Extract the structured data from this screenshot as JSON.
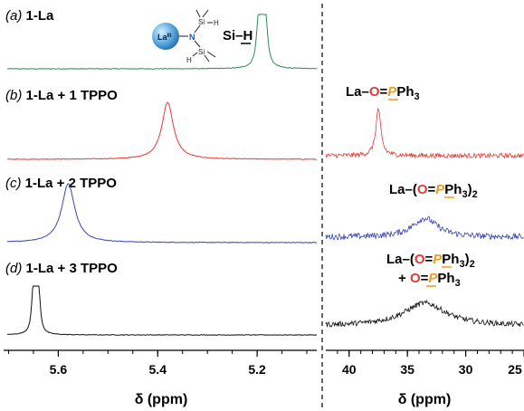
{
  "chart_data": [
    {
      "type": "line",
      "xlabel": "δ (ppm)",
      "xlim": [
        5.71,
        5.08
      ],
      "x_ticks": [
        "5.6",
        "5.4",
        "5.2"
      ],
      "series": [
        {
          "name": "1-La",
          "label_prefix": "(a)",
          "color": "#2e8b57",
          "peaks": [
            {
              "center": 5.19,
              "height": 1.0,
              "width": 0.009,
              "multiplet": true
            }
          ]
        },
        {
          "name": "1-La + 1 TPPO",
          "label_prefix": "(b)",
          "color": "#e53935",
          "peaks": [
            {
              "center": 5.38,
              "height": 1.0,
              "width": 0.014,
              "multiplet": false
            }
          ]
        },
        {
          "name": "1-La + 2 TPPO",
          "label_prefix": "(c)",
          "color": "#3a45b0",
          "peaks": [
            {
              "center": 5.58,
              "height": 1.0,
              "width": 0.016,
              "multiplet": false
            }
          ]
        },
        {
          "name": "1-La + 3 TPPO",
          "label_prefix": "(d)",
          "color": "#111111",
          "peaks": [
            {
              "center": 5.645,
              "height": 1.0,
              "width": 0.007,
              "multiplet": true
            }
          ]
        }
      ],
      "annotations": {
        "si_h": "Si–H",
        "molecule": {
          "la": "La",
          "la_sup": "III",
          "n": "N",
          "si": "Si",
          "h": "H"
        }
      }
    },
    {
      "type": "line",
      "xlabel": "δ (ppm)",
      "xlim": [
        42,
        25
      ],
      "x_ticks": [
        "40",
        "35",
        "30",
        "25"
      ],
      "series": [
        {
          "name": "1-La + 1 TPPO",
          "color": "#e53935",
          "peaks": [
            {
              "center": 37.5,
              "height": 1.0,
              "width": 0.25
            }
          ]
        },
        {
          "name": "1-La + 2 TPPO",
          "color": "#3a45b0",
          "peaks": [
            {
              "center": 33.5,
              "height": 0.55,
              "width": 1.3
            }
          ]
        },
        {
          "name": "1-La + 3 TPPO",
          "color": "#111111",
          "peaks": [
            {
              "center": 33.5,
              "height": 0.6,
              "width": 2.2
            }
          ]
        }
      ],
      "annotations": {
        "b": "La–O=PPh3",
        "c": "La–(O=PPh3)2",
        "d_line1": "La–(O=PPh3)2",
        "d_line2": "+ O=PPh3"
      }
    }
  ],
  "colors": {
    "oxygen": "#e53935",
    "phosphorus": "#f29a1f",
    "bulb": "#5aa9e0"
  }
}
